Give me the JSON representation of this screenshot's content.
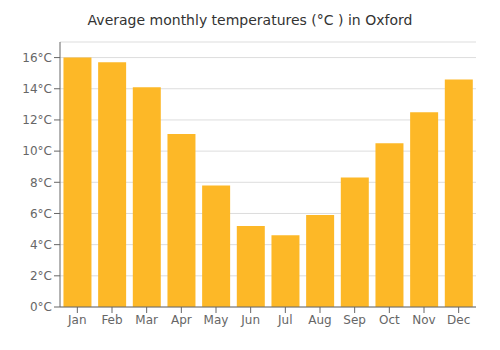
{
  "chart_data": {
    "type": "bar",
    "title": "Average monthly temperatures (°C ) in Oxford",
    "categories": [
      "Jan",
      "Feb",
      "Mar",
      "Apr",
      "May",
      "Jun",
      "Jul",
      "Aug",
      "Sep",
      "Oct",
      "Nov",
      "Dec"
    ],
    "values": [
      16.0,
      15.7,
      14.1,
      11.1,
      7.8,
      5.2,
      4.6,
      5.9,
      8.3,
      10.5,
      12.5,
      14.6
    ],
    "color": "#FDB827",
    "ylim": [
      0,
      17
    ],
    "yticks": [
      {
        "value": 0,
        "label": "0°C"
      },
      {
        "value": 2,
        "label": "2°C"
      },
      {
        "value": 4,
        "label": "4°C"
      },
      {
        "value": 6,
        "label": "6°C"
      },
      {
        "value": 8,
        "label": "8°C"
      },
      {
        "value": 10,
        "label": "10°C"
      },
      {
        "value": 12,
        "label": "12°C"
      },
      {
        "value": 14,
        "label": "14°C"
      },
      {
        "value": 16,
        "label": "16°C"
      }
    ],
    "grid": true
  }
}
